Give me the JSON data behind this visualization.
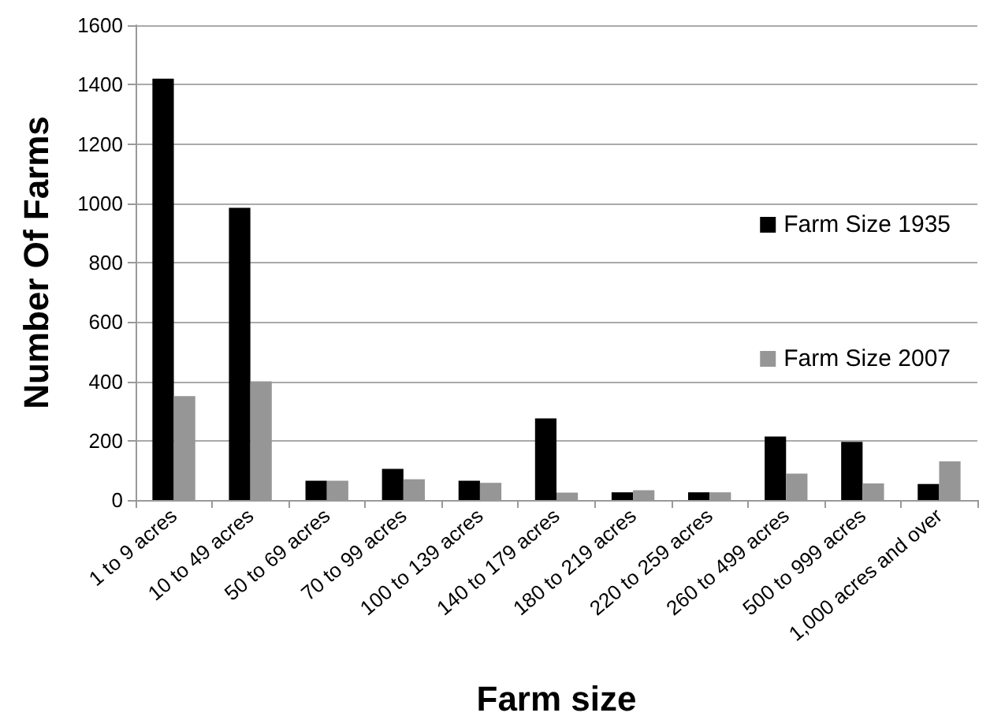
{
  "chart_data": {
    "type": "bar",
    "xlabel": "Farm size",
    "ylabel": "Number Of Farms",
    "categories": [
      "1 to 9 acres",
      "10 to 49 acres",
      "50 to 69 acres",
      "70 to 99 acres",
      "100 to 139 acres",
      "140 to 179 acres",
      "180 to 219 acres",
      "220 to 259 acres",
      "260 to 499 acres",
      "500 to 999 acres",
      "1,000 acres and over"
    ],
    "series": [
      {
        "name": "Farm Size 1935",
        "color": "#000000",
        "values": [
          1420,
          985,
          65,
          105,
          65,
          275,
          26,
          26,
          214,
          196,
          54
        ]
      },
      {
        "name": "Farm Size 2007",
        "color": "#969696",
        "values": [
          350,
          400,
          65,
          70,
          58,
          25,
          33,
          26,
          89,
          56,
          130
        ]
      }
    ],
    "ylim": [
      0,
      1600
    ],
    "yticks": [
      0,
      200,
      400,
      600,
      800,
      1000,
      1200,
      1400,
      1600
    ],
    "grid": "y",
    "legend": "right"
  }
}
